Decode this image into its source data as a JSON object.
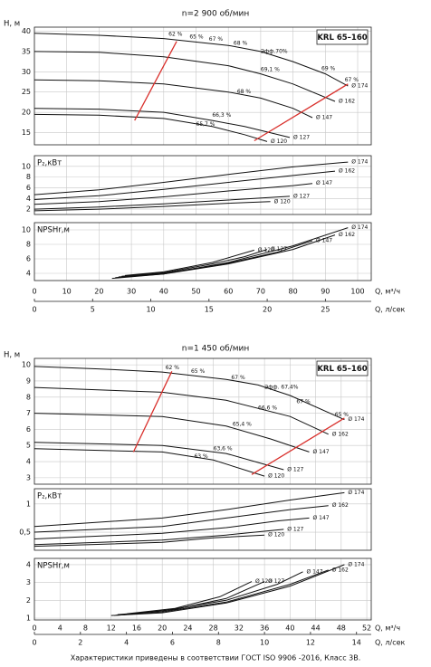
{
  "chart_data": [
    {
      "type": "line",
      "title": "n=2 900 об/мин",
      "model": "KRL 65–160",
      "xlabel": "Q, м³/ч",
      "xlim": [
        0,
        104.2
      ],
      "xticks": [
        0,
        10,
        20,
        30,
        40,
        50,
        60,
        70,
        80,
        90,
        100
      ],
      "x2label": "Q, л/сек",
      "x2lim": [
        0,
        28.94
      ],
      "x2ticks": [
        0,
        5,
        10,
        15,
        20,
        25
      ],
      "grid": true,
      "limit_color": "#d9302c",
      "panels": [
        {
          "ylabel": "H, м",
          "ylim": [
            12,
            41
          ],
          "yticks": [
            15,
            20,
            25,
            30,
            35,
            40
          ],
          "series": [
            {
              "name": "Ø 174",
              "x": [
                0,
                20,
                40,
                60,
                70,
                80,
                90,
                97
              ],
              "values": [
                39.5,
                39,
                38.2,
                36.5,
                35,
                32.5,
                29.5,
                26.5
              ]
            },
            {
              "name": "Ø 162",
              "x": [
                0,
                20,
                40,
                60,
                70,
                80,
                93
              ],
              "values": [
                35,
                34.8,
                33.7,
                31.5,
                29.5,
                27,
                22.7
              ]
            },
            {
              "name": "Ø 147",
              "x": [
                0,
                20,
                40,
                60,
                70,
                80,
                86
              ],
              "values": [
                28,
                27.8,
                27,
                25,
                23.5,
                21,
                18.7
              ]
            },
            {
              "name": "Ø 127",
              "x": [
                0,
                20,
                40,
                55,
                65,
                79
              ],
              "values": [
                21,
                20.8,
                20,
                18,
                16.5,
                13.8
              ]
            },
            {
              "name": "Ø 120",
              "x": [
                0,
                20,
                40,
                55,
                65,
                72
              ],
              "values": [
                19.5,
                19.3,
                18.5,
                16.5,
                14.5,
                12.8
              ]
            }
          ],
          "limits": [
            {
              "x": [
                31,
                44
              ],
              "values": [
                18,
                37.5
              ]
            },
            {
              "x": [
                68,
                97
              ],
              "values": [
                13,
                27
              ]
            }
          ],
          "annotations": [
            {
              "text": "62 %",
              "x": 41.5,
              "y": 39.2
            },
            {
              "text": "65 %",
              "x": 48,
              "y": 38.5
            },
            {
              "text": "67 %",
              "x": 54,
              "y": 38
            },
            {
              "text": "68 %",
              "x": 61.6,
              "y": 37
            },
            {
              "text": "Эфф.70%",
              "x": 70,
              "y": 35
            },
            {
              "text": "69 %",
              "x": 88.8,
              "y": 30.7
            },
            {
              "text": "67 %",
              "x": 96,
              "y": 28
            },
            {
              "text": "69,1 %",
              "x": 70,
              "y": 30.5
            },
            {
              "text": "68 %",
              "x": 62.7,
              "y": 25
            },
            {
              "text": "66,3 %",
              "x": 55,
              "y": 19.2
            },
            {
              "text": "65,7 %",
              "x": 50,
              "y": 17
            }
          ]
        },
        {
          "ylabel": "P₂,кВт",
          "ylim": [
            1,
            12
          ],
          "yticks": [
            2,
            4,
            6,
            8,
            10
          ],
          "series": [
            {
              "name": "Ø 174",
              "x": [
                0,
                20,
                40,
                60,
                80,
                97
              ],
              "values": [
                4.7,
                5.6,
                7,
                8.5,
                9.9,
                10.8
              ]
            },
            {
              "name": "Ø 162",
              "x": [
                0,
                20,
                40,
                60,
                80,
                93
              ],
              "values": [
                3.8,
                4.5,
                5.7,
                7,
                8.3,
                9.1
              ]
            },
            {
              "name": "Ø 147",
              "x": [
                0,
                20,
                40,
                60,
                80,
                86
              ],
              "values": [
                2.9,
                3.4,
                4.3,
                5.4,
                6.4,
                6.8
              ]
            },
            {
              "name": "Ø 127",
              "x": [
                0,
                20,
                40,
                60,
                79
              ],
              "values": [
                2,
                2.4,
                3,
                3.7,
                4.4
              ]
            },
            {
              "name": "Ø 120",
              "x": [
                0,
                20,
                40,
                60,
                73
              ],
              "values": [
                1.7,
                2,
                2.5,
                3.1,
                3.4
              ]
            }
          ]
        },
        {
          "ylabel": "NPSHr,м",
          "ylim": [
            3,
            11
          ],
          "yticks": [
            4,
            6,
            8,
            10
          ],
          "series": [
            {
              "name": "Ø 174",
              "x": [
                24,
                40,
                60,
                80,
                97
              ],
              "values": [
                3.3,
                3.9,
                5.5,
                7.8,
                10.3
              ]
            },
            {
              "name": "Ø 162",
              "x": [
                25,
                40,
                60,
                80,
                93
              ],
              "values": [
                3.4,
                3.9,
                5.3,
                7.3,
                9.3
              ]
            },
            {
              "name": "Ø 147",
              "x": [
                26,
                40,
                60,
                75,
                86
              ],
              "values": [
                3.5,
                4,
                5.4,
                6.9,
                8.5
              ]
            },
            {
              "name": "Ø 127",
              "x": [
                27,
                40,
                55,
                65,
                72
              ],
              "values": [
                3.6,
                4.1,
                5.3,
                6.3,
                7.3
              ]
            },
            {
              "name": "Ø 120",
              "x": [
                28,
                40,
                55,
                68
              ],
              "values": [
                3.7,
                4.2,
                5.5,
                7.2
              ]
            }
          ]
        }
      ]
    },
    {
      "type": "line",
      "title": "n=1 450 об/мин",
      "model": "KRL 65–160",
      "xlabel": "Q, м³/ч",
      "xlim": [
        0,
        52.7
      ],
      "xticks": [
        0,
        4,
        8,
        12,
        16,
        20,
        24,
        28,
        32,
        36,
        40,
        44,
        48,
        52
      ],
      "x2label": "Q, л/сек",
      "x2lim": [
        0,
        14.64
      ],
      "x2ticks": [
        0,
        2,
        4,
        6,
        8,
        10,
        12,
        14
      ],
      "grid": true,
      "limit_color": "#d9302c",
      "panels": [
        {
          "ylabel": "H, м",
          "ylim": [
            2.6,
            10.4
          ],
          "yticks": [
            3,
            4,
            5,
            6,
            7,
            8,
            9,
            10
          ],
          "series": [
            {
              "name": "Ø 174",
              "x": [
                0,
                10,
                20,
                30,
                35,
                40,
                48.5
              ],
              "values": [
                9.9,
                9.75,
                9.55,
                9.1,
                8.75,
                8.1,
                6.6
              ]
            },
            {
              "name": "Ø 162",
              "x": [
                0,
                20,
                30,
                40,
                46
              ],
              "values": [
                8.6,
                8.3,
                7.8,
                6.8,
                5.7
              ]
            },
            {
              "name": "Ø 147",
              "x": [
                0,
                20,
                30,
                37,
                43
              ],
              "values": [
                7,
                6.8,
                6.2,
                5.4,
                4.6
              ]
            },
            {
              "name": "Ø 127",
              "x": [
                0,
                20,
                30,
                39
              ],
              "values": [
                5.2,
                5,
                4.5,
                3.5
              ]
            },
            {
              "name": "Ø 120",
              "x": [
                0,
                20,
                28,
                36
              ],
              "values": [
                4.8,
                4.6,
                4.1,
                3.1
              ]
            }
          ],
          "limits": [
            {
              "x": [
                15.5,
                21.5
              ],
              "values": [
                4.6,
                9.6
              ]
            },
            {
              "x": [
                34,
                48.5
              ],
              "values": [
                3.2,
                6.7
              ]
            }
          ],
          "annotations": [
            {
              "text": "62 %",
              "x": 20.5,
              "y": 9.8
            },
            {
              "text": "65 %",
              "x": 24.5,
              "y": 9.6
            },
            {
              "text": "67 %",
              "x": 30.8,
              "y": 9.2
            },
            {
              "text": "Эфф. 67,4%",
              "x": 36,
              "y": 8.6
            },
            {
              "text": "67 %",
              "x": 41,
              "y": 7.7
            },
            {
              "text": "65 %",
              "x": 47,
              "y": 6.9
            },
            {
              "text": "66,6 %",
              "x": 35,
              "y": 7.3
            },
            {
              "text": "65,4 %",
              "x": 31,
              "y": 6.3
            },
            {
              "text": "63,6 %",
              "x": 28,
              "y": 4.8
            },
            {
              "text": "63 %",
              "x": 25,
              "y": 4.3
            }
          ]
        },
        {
          "ylabel": "P₂,кВт",
          "ylim": [
            0.18,
            1.27
          ],
          "yticks": [
            {
              "value": 0.5,
              "label": "0,5"
            },
            1
          ],
          "series": [
            {
              "name": "Ø 174",
              "x": [
                0,
                20,
                30,
                40,
                48.5
              ],
              "values": [
                0.6,
                0.75,
                0.9,
                1.07,
                1.2
              ]
            },
            {
              "name": "Ø 162",
              "x": [
                0,
                20,
                30,
                40,
                46
              ],
              "values": [
                0.5,
                0.6,
                0.75,
                0.9,
                0.97
              ]
            },
            {
              "name": "Ø 147",
              "x": [
                0,
                20,
                30,
                38,
                43
              ],
              "values": [
                0.38,
                0.48,
                0.58,
                0.7,
                0.75
              ]
            },
            {
              "name": "Ø 127",
              "x": [
                0,
                20,
                30,
                39
              ],
              "values": [
                0.28,
                0.36,
                0.45,
                0.55
              ]
            },
            {
              "name": "Ø 120",
              "x": [
                0,
                20,
                28,
                36
              ],
              "values": [
                0.25,
                0.32,
                0.4,
                0.45
              ]
            }
          ]
        },
        {
          "ylabel": "NPSHr,м",
          "ylim": [
            0.9,
            4.35
          ],
          "yticks": [
            1,
            2,
            3,
            4
          ],
          "series": [
            {
              "name": "Ø 174",
              "x": [
                12,
                20,
                30,
                40,
                48.5
              ],
              "values": [
                1.15,
                1.3,
                1.85,
                2.8,
                4
              ]
            },
            {
              "name": "Ø 162",
              "x": [
                12.5,
                20,
                30,
                40,
                46
              ],
              "values": [
                1.15,
                1.35,
                1.9,
                2.9,
                3.7
              ]
            },
            {
              "name": "Ø 147",
              "x": [
                13,
                20,
                30,
                38,
                42
              ],
              "values": [
                1.2,
                1.4,
                2,
                2.9,
                3.6
              ]
            },
            {
              "name": "Ø 127",
              "x": [
                14,
                22,
                30,
                36
              ],
              "values": [
                1.2,
                1.5,
                2.1,
                3.05
              ]
            },
            {
              "name": "Ø 120",
              "x": [
                14.5,
                22,
                29,
                34
              ],
              "values": [
                1.25,
                1.55,
                2.2,
                3.05
              ]
            }
          ]
        }
      ]
    }
  ],
  "footer": "Характеристики приведены в соответствии  ГОСТ ISO 9906 -2016, Класс 3В."
}
